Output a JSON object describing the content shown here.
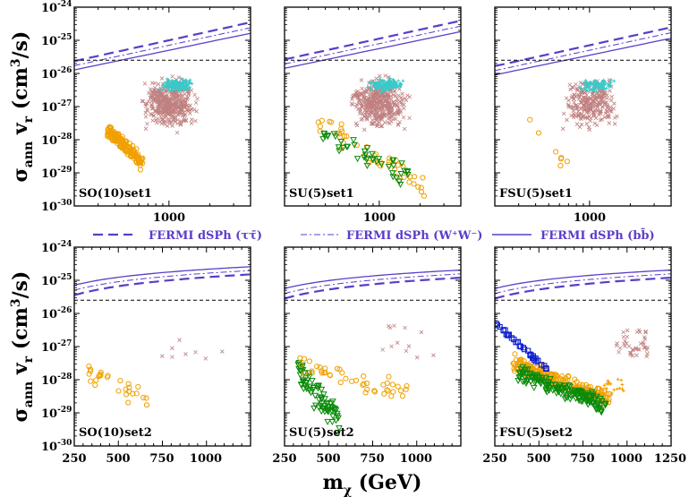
{
  "chart_data": {
    "type": "scatter",
    "title": "",
    "ylabel": "σ_ann v_r (cm³/s)",
    "ylabel_parts": {
      "sym": "σ",
      "sub1": "ann",
      "v": "v",
      "sub2": "r",
      "unit": "(cm",
      "sup": "3",
      "unit2": "/s)"
    },
    "xlabel": "m_χ (GeV)",
    "xlabel_parts": {
      "m": "m",
      "sub": "χ",
      "unit": "(GeV)"
    },
    "legend": [
      {
        "label": "FERMI dSPh (ττ̄)",
        "style": "dashed"
      },
      {
        "label": "FERMI dSPh (W⁺W⁻)",
        "style": "dashdot"
      },
      {
        "label": "FERMI dSPh (bb̄)",
        "style": "solid"
      }
    ],
    "colors": {
      "fermi": "#5b3dc8",
      "thermal": "#000000",
      "brown": "#c08080",
      "cyan": "#3cc8c8",
      "orange": "#f0a000",
      "green": "#0a8a0a",
      "blue": "#1020d0"
    },
    "y_ticks": [
      "10-24",
      "10-25",
      "10-26",
      "10-27",
      "10-28",
      "10-29",
      "10-30"
    ],
    "y_tick_parts": [
      [
        "10",
        "-24"
      ],
      [
        "10",
        "-25"
      ],
      [
        "10",
        "-26"
      ],
      [
        "10",
        "-27"
      ],
      [
        "10",
        "-28"
      ],
      [
        "10",
        "-29"
      ],
      [
        "10",
        "-30"
      ]
    ],
    "ylim_log10": [
      -30,
      -24
    ],
    "thermal_relic": 2.5e-26,
    "top_row": {
      "xscale": "log",
      "xlim": [
        200,
        4000
      ],
      "x_tick_labels": [
        "1000"
      ],
      "panels": [
        {
          "label": "SO(10)set1",
          "bands": [
            {
              "marker": "circle",
              "color": "orange",
              "x": [
                350,
                640
              ],
              "logy": [
                -28.7,
                -27.7
              ],
              "n": 160,
              "spread": 0.18
            }
          ]
        },
        {
          "label": "SU(5)set1",
          "bands": [
            {
              "marker": "circle",
              "color": "orange",
              "x": [
                330,
                2200
              ],
              "logy": [
                -29.5,
                -27.4
              ],
              "n": 45,
              "spread": 0.35
            },
            {
              "marker": "triangle",
              "color": "green",
              "x": [
                380,
                1700
              ],
              "logy": [
                -29.1,
                -27.8
              ],
              "n": 45,
              "spread": 0.3
            }
          ]
        },
        {
          "label": "FSU(5)set1",
          "bands": [
            {
              "marker": "circle",
              "color": "orange",
              "x": [
                340,
                700
              ],
              "logy": [
                -28.9,
                -27.4
              ],
              "n": 7,
              "spread": 0.25
            }
          ]
        }
      ]
    },
    "bottom_row": {
      "xscale": "linear",
      "xlim": [
        250,
        1250
      ],
      "x_ticks": [
        250,
        500,
        750,
        1000,
        1250
      ],
      "x_tick_labels": [
        "250",
        "500",
        "750",
        "1000",
        "1250"
      ],
      "panels": [
        {
          "label": "SO(10)set2",
          "bands": [
            {
              "marker": "circle",
              "color": "orange",
              "x": [
                330,
                670
              ],
              "logy": [
                -28.5,
                -27.7
              ],
              "n": 28,
              "spread": 0.3
            }
          ],
          "brown": {
            "x": [
              640,
              1110
            ],
            "logy": [
              -27.4,
              -26.8
            ],
            "n": 8
          }
        },
        {
          "label": "SU(5)set2",
          "bands": [
            {
              "marker": "triangle",
              "color": "green",
              "x": [
                320,
                560
              ],
              "logy": [
                -29.3,
                -27.6
              ],
              "n": 80,
              "spread": 0.35
            },
            {
              "marker": "circle",
              "color": "orange",
              "x": [
                330,
                950
              ],
              "logy": [
                -28.4,
                -27.6
              ],
              "n": 45,
              "spread": 0.25
            }
          ],
          "brown": {
            "x": [
              780,
              1100
            ],
            "logy": [
              -27.6,
              -26.3
            ],
            "n": 12
          }
        },
        {
          "label": "FSU(5)set2",
          "bands": [
            {
              "marker": "circle",
              "color": "orange",
              "x": [
                350,
                900
              ],
              "logy": [
                -28.6,
                -27.5
              ],
              "n": 220,
              "spread": 0.2
            },
            {
              "marker": "triangle",
              "color": "green",
              "x": [
                380,
                880
              ],
              "logy": [
                -28.8,
                -27.8
              ],
              "n": 160,
              "spread": 0.2
            },
            {
              "marker": "square",
              "color": "blue",
              "x": [
                215,
                570
              ],
              "logy": [
                -26.1,
                -27.8
              ],
              "n": 36,
              "spread": 0.05
            }
          ],
          "brown": {
            "x": [
              940,
              1120
            ],
            "logy": [
              -27.3,
              -26.5
            ],
            "n": 40
          }
        }
      ]
    }
  }
}
